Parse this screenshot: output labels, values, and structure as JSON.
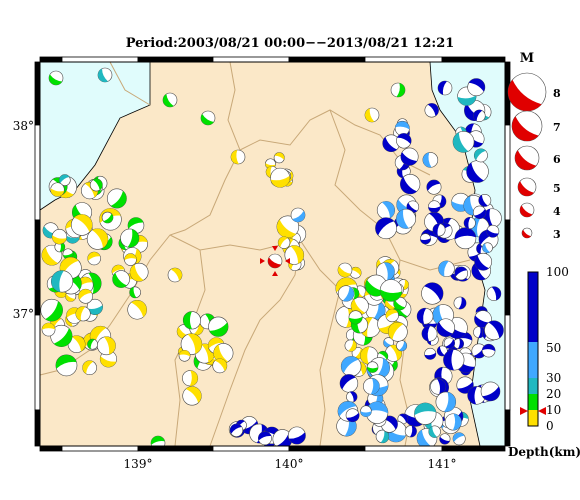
{
  "header": {
    "title": "Period:2003/08/21 00:00−−2013/08/21 12:21"
  },
  "axes": {
    "longitude_ticks": [
      "139°",
      "140°",
      "141°"
    ],
    "latitude_ticks": [
      "38°",
      "37°"
    ]
  },
  "magnitude_legend": {
    "title": "M",
    "labels": [
      "8",
      "7",
      "6",
      "5",
      "4",
      "3"
    ]
  },
  "depth_scale": {
    "title": "Depth(km)",
    "labels": [
      "100",
      "50",
      "30",
      "20",
      "10",
      "0"
    ],
    "colors": {
      "shallow": "#ffe000",
      "mid_shallow": "#00e000",
      "mid": "#20b8c0",
      "mid_deep": "#40a8ff",
      "deep": "#0000c8"
    }
  },
  "map_colors": {
    "land": "#fbe8c8",
    "sea": "#e0fcfc",
    "boundary": "#c8a878",
    "frame": "#000000"
  },
  "main_event": {
    "marker": "red-star-mechanism",
    "depth_marker": "red-bowtie"
  }
}
